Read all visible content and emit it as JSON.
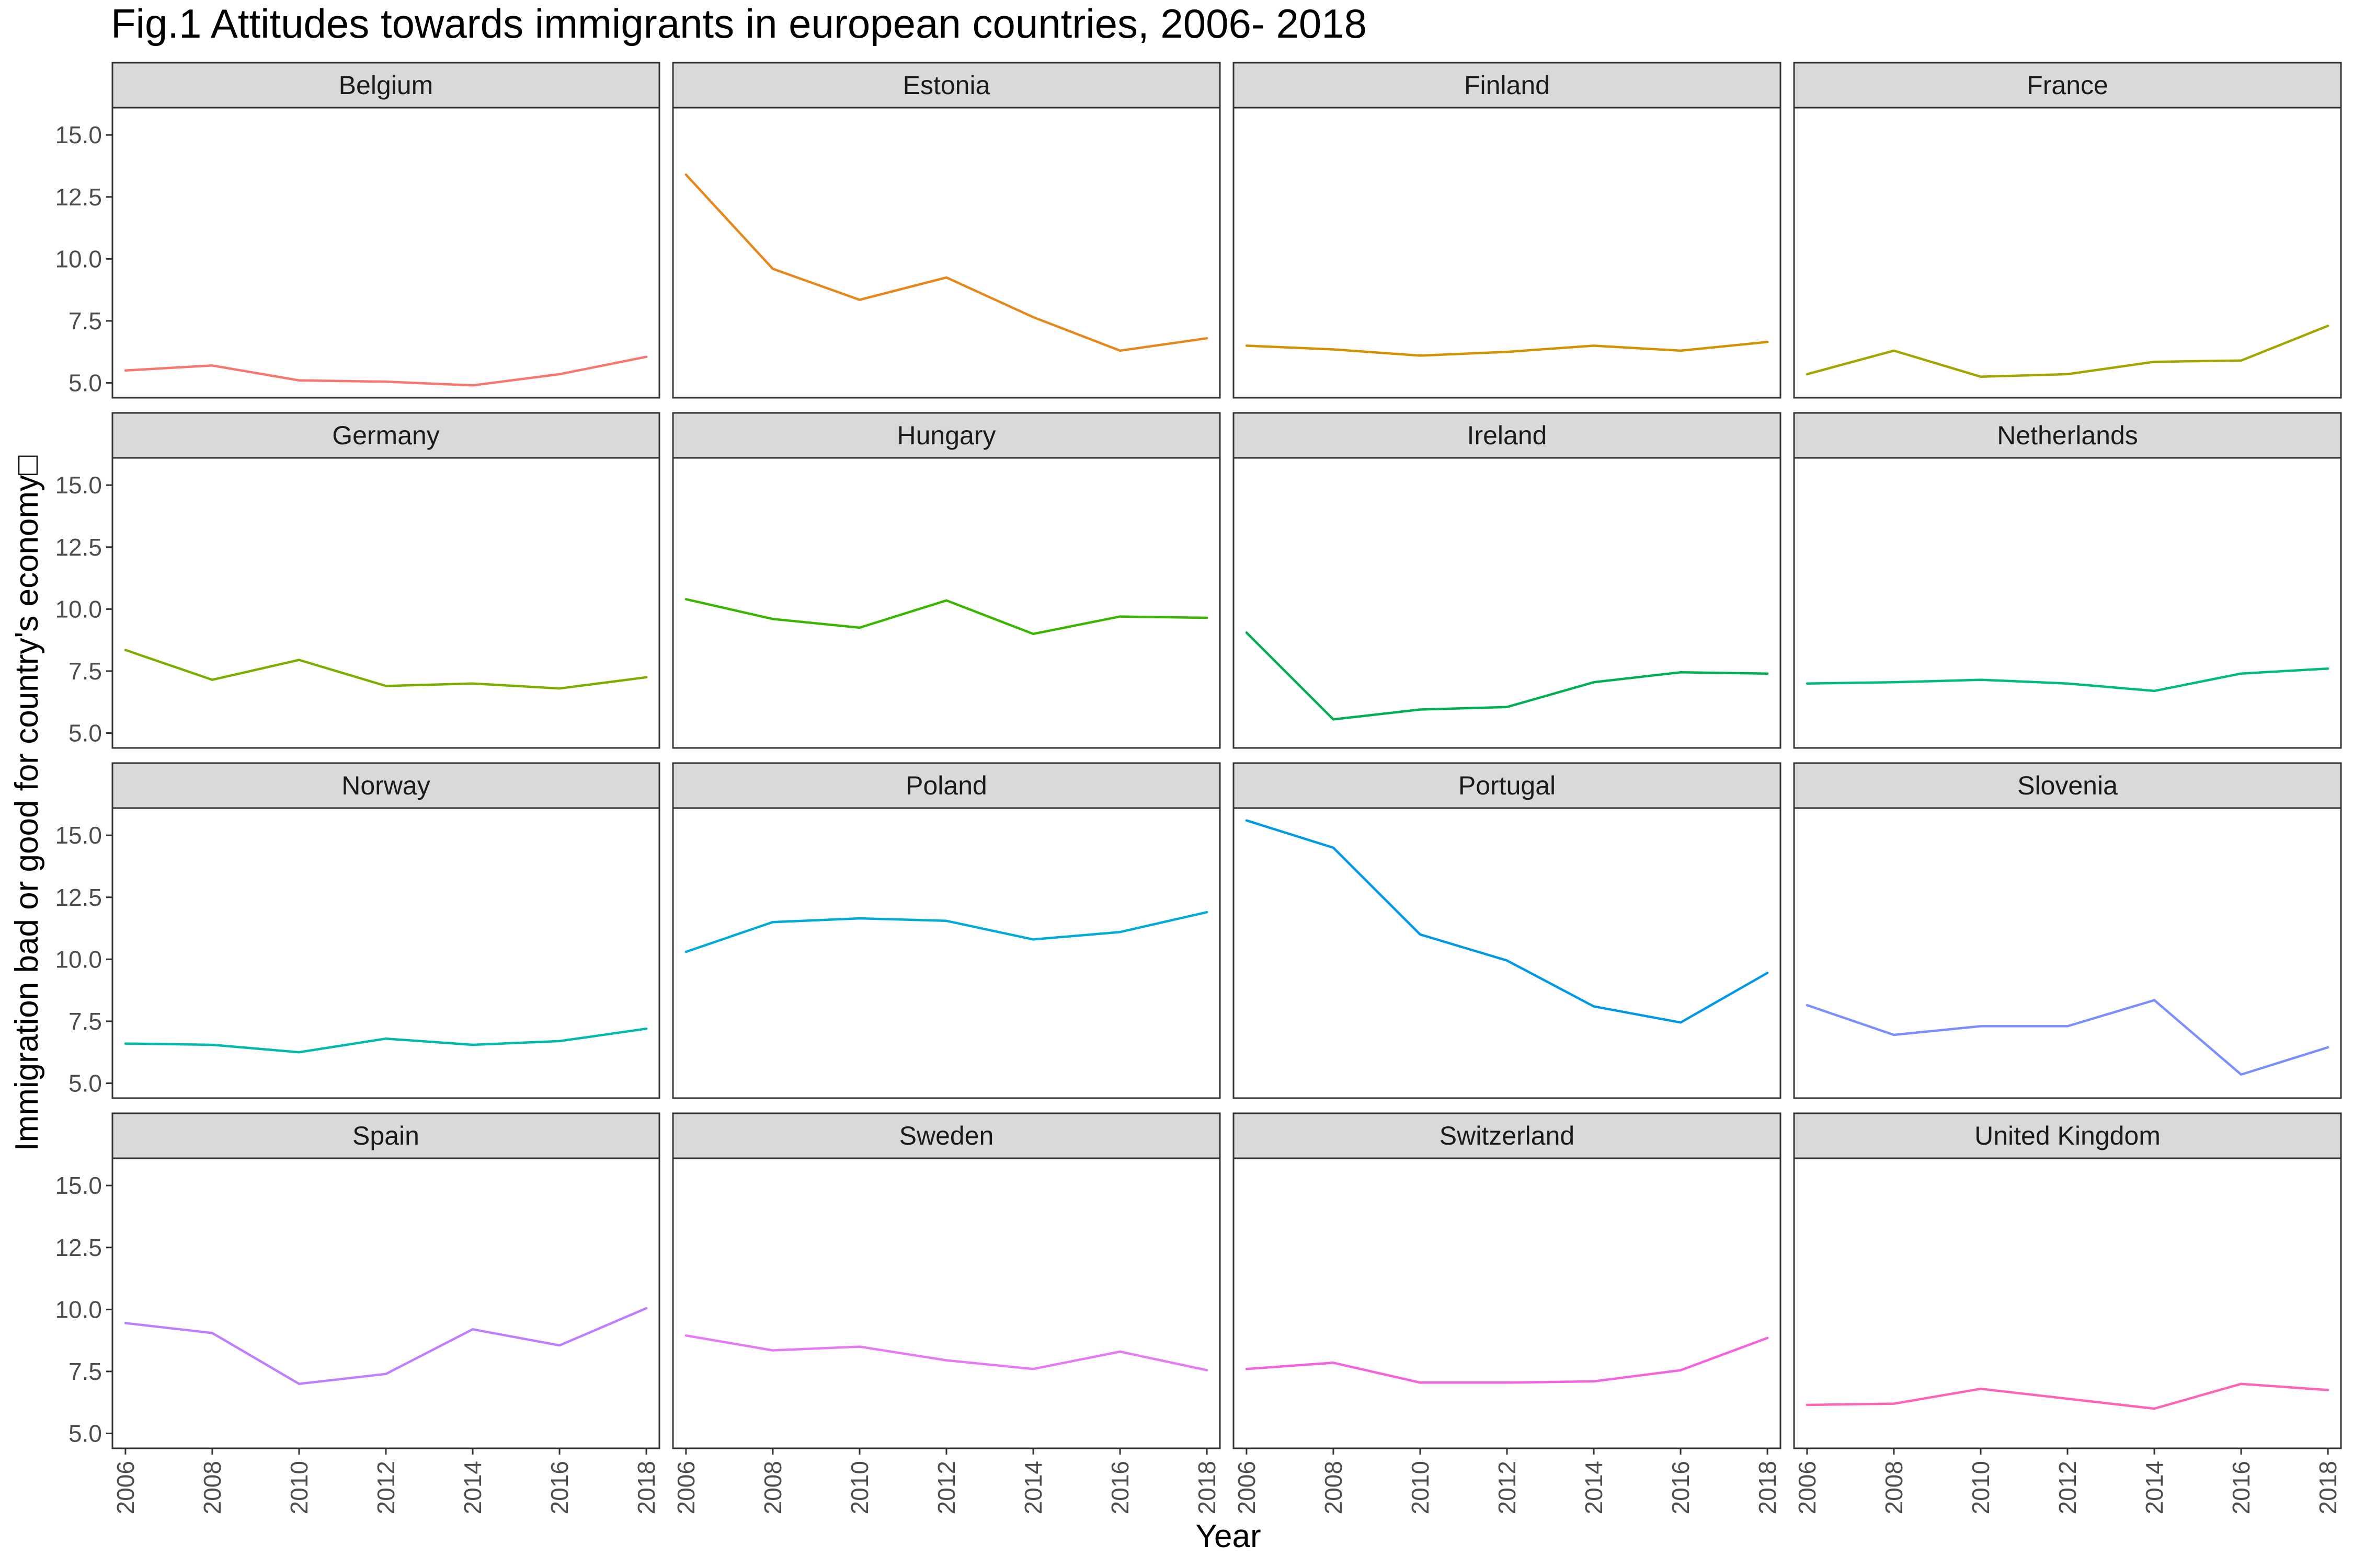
{
  "chart_data": {
    "type": "line",
    "title": "Fig.1 Attitudes towards immigrants in european countries, 2006- 2018",
    "xlabel": "Year",
    "ylabel": "Immigration bad or good for country's economy□",
    "x": [
      2006,
      2008,
      2010,
      2012,
      2014,
      2016,
      2018
    ],
    "x_ticks": [
      "2006",
      "2008",
      "2010",
      "2012",
      "2014",
      "2016",
      "2018"
    ],
    "y_ticks": [
      {
        "value": 5.0,
        "label": "5.0"
      },
      {
        "value": 7.5,
        "label": "7.5"
      },
      {
        "value": 10.0,
        "label": "10.0"
      },
      {
        "value": 12.5,
        "label": "12.5"
      },
      {
        "value": 15.0,
        "label": "15.0"
      }
    ],
    "xlim": [
      2005.7,
      2018.3
    ],
    "ylim": [
      4.4,
      16.1
    ],
    "grid": false,
    "facet_layout": {
      "rows": 4,
      "cols": 4
    },
    "panels": [
      {
        "name": "Belgium",
        "color": "#F8766D",
        "values": [
          5.5,
          5.7,
          5.1,
          5.05,
          4.9,
          5.35,
          6.05
        ]
      },
      {
        "name": "Estonia",
        "color": "#E7861B",
        "values": [
          13.4,
          9.6,
          8.35,
          9.25,
          7.65,
          6.3,
          6.8
        ]
      },
      {
        "name": "Finland",
        "color": "#D39200",
        "values": [
          6.5,
          6.35,
          6.1,
          6.25,
          6.5,
          6.3,
          6.65
        ]
      },
      {
        "name": "France",
        "color": "#A3A500",
        "values": [
          5.35,
          6.3,
          5.25,
          5.35,
          5.85,
          5.9,
          7.3
        ]
      },
      {
        "name": "Germany",
        "color": "#7CAE00",
        "values": [
          8.35,
          7.15,
          7.95,
          6.9,
          7.0,
          6.8,
          7.25
        ]
      },
      {
        "name": "Hungary",
        "color": "#39B600",
        "values": [
          10.4,
          9.6,
          9.25,
          10.35,
          9.0,
          9.7,
          9.65
        ]
      },
      {
        "name": "Ireland",
        "color": "#00B050",
        "values": [
          9.05,
          5.55,
          5.95,
          6.05,
          7.05,
          7.45,
          7.4
        ]
      },
      {
        "name": "Netherlands",
        "color": "#00BA80",
        "values": [
          7.0,
          7.05,
          7.15,
          7.0,
          6.7,
          7.4,
          7.6
        ]
      },
      {
        "name": "Norway",
        "color": "#00BAAD",
        "values": [
          6.6,
          6.55,
          6.25,
          6.8,
          6.55,
          6.7,
          7.2
        ]
      },
      {
        "name": "Poland",
        "color": "#00ABDA",
        "values": [
          10.3,
          11.5,
          11.65,
          11.55,
          10.8,
          11.1,
          11.9
        ]
      },
      {
        "name": "Portugal",
        "color": "#0099E8",
        "values": [
          15.6,
          14.5,
          11.0,
          9.95,
          8.1,
          7.45,
          9.45
        ]
      },
      {
        "name": "Slovenia",
        "color": "#7C8EFF",
        "values": [
          8.15,
          6.95,
          7.3,
          7.3,
          8.35,
          5.35,
          6.45
        ]
      },
      {
        "name": "Spain",
        "color": "#BF7EFF",
        "values": [
          9.45,
          9.05,
          7.0,
          7.4,
          9.2,
          8.55,
          10.05
        ]
      },
      {
        "name": "Sweden",
        "color": "#E57AF2",
        "values": [
          8.95,
          8.35,
          8.5,
          7.95,
          7.6,
          8.3,
          7.55
        ]
      },
      {
        "name": "Switzerland",
        "color": "#F562DD",
        "values": [
          7.6,
          7.85,
          7.05,
          7.05,
          7.1,
          7.55,
          8.85
        ]
      },
      {
        "name": "United Kingdom",
        "color": "#FF63B6",
        "values": [
          6.15,
          6.2,
          6.8,
          6.4,
          6.0,
          7.0,
          6.75
        ]
      }
    ]
  }
}
